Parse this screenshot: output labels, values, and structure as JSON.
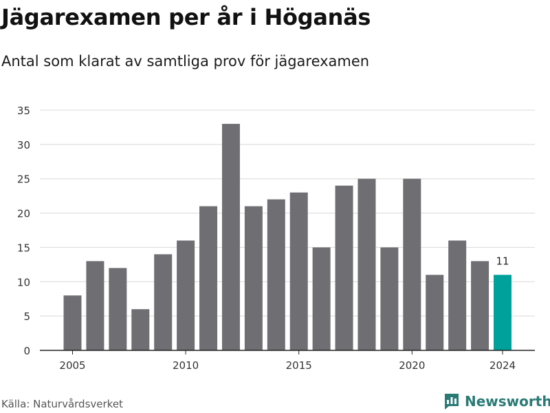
{
  "title": "Jägarexamen per år i Höganäs",
  "subtitle": "Antal som klarat av samtliga prov för jägarexamen",
  "source": "Källa: Naturvårdsverket",
  "brand": {
    "name": "Newsworthy",
    "icon": "newsworthy-logo-icon",
    "color": "#2a7a75"
  },
  "colors": {
    "bar": "#6f6e73",
    "highlight": "#00a19a",
    "grid": "#d8d8d8",
    "axis": "#222222"
  },
  "chart_data": {
    "type": "bar",
    "categories": [
      "2005",
      "2006",
      "2007",
      "2008",
      "2009",
      "2010",
      "2011",
      "2012",
      "2013",
      "2014",
      "2015",
      "2016",
      "2017",
      "2018",
      "2019",
      "2020",
      "2021",
      "2022",
      "2023",
      "2024"
    ],
    "values": [
      8,
      13,
      12,
      6,
      14,
      16,
      21,
      33,
      21,
      22,
      23,
      15,
      24,
      25,
      15,
      25,
      11,
      16,
      13,
      11
    ],
    "x_tick_labels": [
      "2005",
      "2010",
      "2015",
      "2020",
      "2024"
    ],
    "y_ticks": [
      0,
      5,
      10,
      15,
      20,
      25,
      30,
      35
    ],
    "ylim": [
      0,
      35
    ],
    "grid": true,
    "highlight_index": 19,
    "data_labels": [
      {
        "index": 19,
        "text": "11"
      }
    ]
  }
}
